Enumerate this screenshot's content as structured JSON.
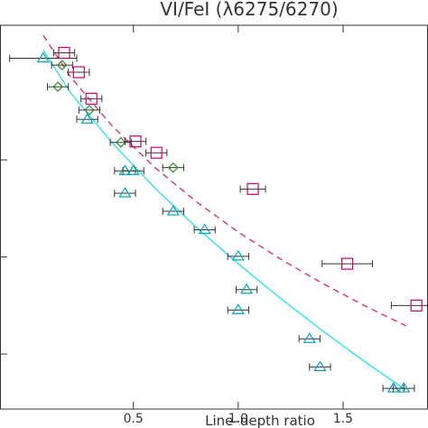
{
  "chart_data": {
    "type": "scatter",
    "title": "VI/FeI (λ6275/6270)",
    "xlabel": "Line–depth ratio",
    "ylabel": "",
    "xlim": [
      0.0,
      1.9
    ],
    "ylim": [
      3700,
      5000
    ],
    "xticks": [
      0.5,
      1.0,
      1.5
    ],
    "xtick_labels": [
      "0.5",
      "1.0",
      "1.5"
    ],
    "yticks": [
      4600,
      4300,
      4000
    ],
    "grid": false,
    "legend": "none",
    "series": [
      {
        "marker": "triangle",
        "color": "#00a6b8",
        "points": [
          {
            "x": 0.07,
            "y": 4914,
            "xerr": 0.16
          },
          {
            "x": 0.28,
            "y": 4725
          },
          {
            "x": 0.46,
            "y": 4566
          },
          {
            "x": 0.5,
            "y": 4566
          },
          {
            "x": 0.46,
            "y": 4497
          },
          {
            "x": 0.69,
            "y": 4441
          },
          {
            "x": 0.84,
            "y": 4384
          },
          {
            "x": 1.0,
            "y": 4302
          },
          {
            "x": 1.04,
            "y": 4199
          },
          {
            "x": 1.0,
            "y": 4136
          },
          {
            "x": 1.34,
            "y": 4047
          },
          {
            "x": 1.39,
            "y": 3960
          },
          {
            "x": 1.74,
            "y": 3894
          },
          {
            "x": 1.79,
            "y": 3894
          }
        ]
      },
      {
        "marker": "diamond",
        "color": "#2e8b2e",
        "points": [
          {
            "x": 0.16,
            "y": 4893
          },
          {
            "x": 0.14,
            "y": 4826
          },
          {
            "x": 0.29,
            "y": 4754
          },
          {
            "x": 0.44,
            "y": 4654
          },
          {
            "x": 0.69,
            "y": 4576
          }
        ]
      },
      {
        "marker": "square",
        "color": "#c8006e",
        "points": [
          {
            "x": 0.17,
            "y": 4931
          },
          {
            "x": 0.24,
            "y": 4871
          },
          {
            "x": 0.3,
            "y": 4789
          },
          {
            "x": 0.51,
            "y": 4657
          },
          {
            "x": 0.61,
            "y": 4622
          },
          {
            "x": 1.07,
            "y": 4510,
            "xerr": 0.06
          },
          {
            "x": 1.52,
            "y": 4279,
            "xerr": 0.12
          },
          {
            "x": 1.85,
            "y": 4150,
            "xerr": 0.12
          }
        ]
      }
    ],
    "fits": [
      {
        "style": "solid",
        "color": "#33e0e6",
        "points": [
          [
            0.07,
            4940
          ],
          [
            0.2,
            4808
          ],
          [
            0.4,
            4652
          ],
          [
            0.6,
            4515
          ],
          [
            0.8,
            4392
          ],
          [
            1.0,
            4279
          ],
          [
            1.2,
            4173
          ],
          [
            1.4,
            4073
          ],
          [
            1.6,
            3978
          ],
          [
            1.8,
            3889
          ]
        ]
      },
      {
        "style": "dashed",
        "color": "#d6317b",
        "points": [
          [
            0.07,
            4985
          ],
          [
            0.2,
            4857
          ],
          [
            0.4,
            4704
          ],
          [
            0.6,
            4578
          ],
          [
            0.8,
            4471
          ],
          [
            1.0,
            4377
          ],
          [
            1.2,
            4294
          ],
          [
            1.4,
            4219
          ],
          [
            1.6,
            4150
          ],
          [
            1.8,
            4087
          ]
        ]
      }
    ]
  }
}
